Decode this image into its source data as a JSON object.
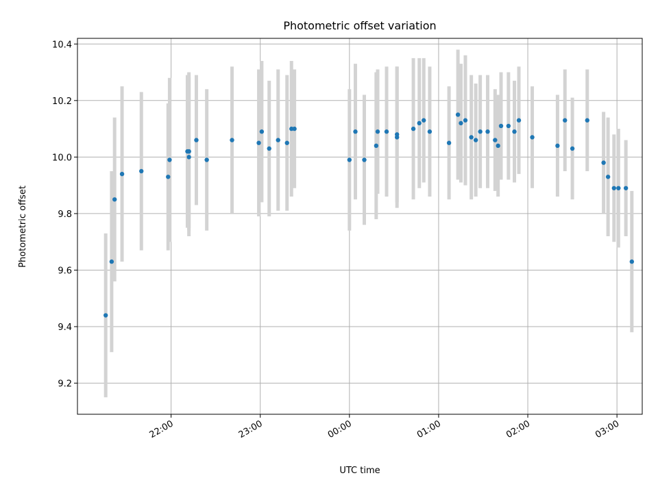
{
  "chart_data": {
    "type": "scatter",
    "title": "Photometric offset variation",
    "xlabel": "UTC time",
    "ylabel": "Photometric offset",
    "x_tick_labels": [
      "22:00",
      "23:00",
      "00:00",
      "01:00",
      "02:00",
      "03:00"
    ],
    "x_ticks_minutes": [
      1320,
      1380,
      1440,
      1500,
      1560,
      1620
    ],
    "y_ticks": [
      9.2,
      9.4,
      9.6,
      9.8,
      10.0,
      10.2,
      10.4
    ],
    "y_tick_labels": [
      "9.2",
      "9.4",
      "9.6",
      "9.8",
      "10.0",
      "10.2",
      "10.4"
    ],
    "xlim_minutes": [
      1257,
      1637
    ],
    "ylim": [
      9.09,
      10.42
    ],
    "grid": true,
    "colors": {
      "points": "#1f77b4",
      "errorbars": "#d3d3d3"
    },
    "series": [
      {
        "x_minutes": [
          1276,
          1280,
          1282,
          1287,
          1300,
          1318,
          1319,
          1331,
          1332,
          1332,
          1332,
          1337,
          1344,
          1361,
          1379,
          1381,
          1386,
          1392,
          1398,
          1401,
          1403,
          1440,
          1444,
          1450,
          1458,
          1459,
          1465,
          1472,
          1472,
          1483,
          1487,
          1490,
          1494,
          1507,
          1513,
          1515,
          1518,
          1522,
          1525,
          1528,
          1533,
          1538,
          1540,
          1542,
          1547,
          1551,
          1554,
          1563,
          1580,
          1585,
          1590,
          1600,
          1611,
          1614,
          1618,
          1621,
          1626,
          1630
        ],
        "y": [
          9.44,
          9.63,
          9.85,
          9.94,
          9.95,
          9.93,
          9.99,
          10.02,
          10.0,
          10.02,
          10.02,
          10.06,
          9.99,
          10.06,
          10.05,
          10.09,
          10.03,
          10.06,
          10.05,
          10.1,
          10.1,
          9.99,
          10.09,
          9.99,
          10.04,
          10.09,
          10.09,
          10.07,
          10.08,
          10.1,
          10.12,
          10.13,
          10.09,
          10.05,
          10.15,
          10.12,
          10.13,
          10.07,
          10.06,
          10.09,
          10.09,
          10.06,
          10.04,
          10.11,
          10.11,
          10.09,
          10.13,
          10.07,
          10.04,
          10.13,
          10.03,
          10.13,
          9.98,
          9.93,
          9.89,
          9.89,
          9.89,
          9.63
        ],
        "yerr": [
          0.29,
          0.32,
          0.29,
          0.31,
          0.28,
          0.26,
          0.29,
          0.27,
          0.28,
          0.28,
          0.27,
          0.23,
          0.25,
          0.26,
          0.26,
          0.25,
          0.24,
          0.25,
          0.24,
          0.24,
          0.21,
          0.25,
          0.24,
          0.23,
          0.26,
          0.22,
          0.23,
          0.25,
          0.24,
          0.25,
          0.23,
          0.22,
          0.23,
          0.2,
          0.23,
          0.21,
          0.23,
          0.22,
          0.2,
          0.2,
          0.2,
          0.18,
          0.18,
          0.19,
          0.19,
          0.18,
          0.19,
          0.18,
          0.18,
          0.18,
          0.18,
          0.18,
          0.18,
          0.21,
          0.19,
          0.21,
          0.17,
          0.25
        ]
      }
    ]
  }
}
